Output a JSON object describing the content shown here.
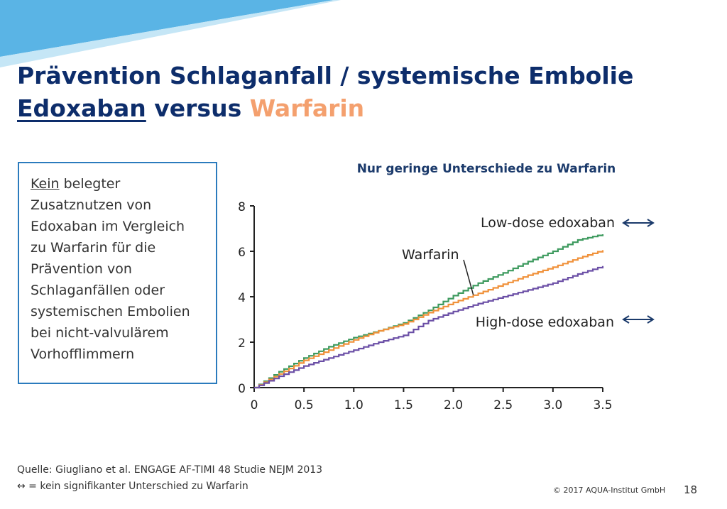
{
  "slide": {
    "title_line1": "Prävention Schlaganfall / systemische Embolie",
    "title_drug1": "Edoxaban",
    "title_versus": " versus ",
    "title_drug2": "Warfarin",
    "accent_color": "#0d2d6b",
    "highlight_color": "#f4a06e"
  },
  "infobox": {
    "keyword": "Kein",
    "line1_rest": " belegter",
    "lines": [
      "Zusatznutzen von",
      "Edoxaban im Vergleich",
      "zu Warfarin für die",
      "Prävention von",
      "Schlaganfällen oder",
      "systemischen Embolien",
      "bei nicht-valvulärem",
      "Vorhofflimmern"
    ]
  },
  "chart_data": {
    "type": "line",
    "title": "Nur geringe Unterschiede zu Warfarin",
    "xlabel": "",
    "ylabel": "",
    "xlim": [
      0,
      3.5
    ],
    "ylim": [
      0,
      8
    ],
    "x_ticks": [
      "0",
      "0.5",
      "1.0",
      "1.5",
      "2.0",
      "2.5",
      "3.0",
      "3.5"
    ],
    "y_ticks": [
      "0",
      "2",
      "4",
      "6",
      "8"
    ],
    "grid": false,
    "series": [
      {
        "name": "Low-dose edoxaban",
        "color": "#3d9a5e",
        "x": [
          0,
          0.25,
          0.5,
          0.75,
          1.0,
          1.25,
          1.5,
          1.75,
          2.0,
          2.25,
          2.5,
          2.75,
          3.0,
          3.25,
          3.5
        ],
        "y": [
          0,
          0.7,
          1.3,
          1.8,
          2.2,
          2.5,
          2.85,
          3.4,
          4.05,
          4.6,
          5.05,
          5.55,
          6.0,
          6.5,
          6.75
        ]
      },
      {
        "name": "Warfarin",
        "color": "#f0913a",
        "x": [
          0,
          0.25,
          0.5,
          0.75,
          1.0,
          1.25,
          1.5,
          1.75,
          2.0,
          2.25,
          2.5,
          2.75,
          3.0,
          3.25,
          3.5
        ],
        "y": [
          0,
          0.6,
          1.2,
          1.65,
          2.1,
          2.5,
          2.8,
          3.3,
          3.75,
          4.15,
          4.55,
          4.95,
          5.3,
          5.7,
          6.05
        ]
      },
      {
        "name": "High-dose edoxaban",
        "color": "#6b4fa6",
        "x": [
          0,
          0.25,
          0.5,
          0.75,
          1.0,
          1.25,
          1.5,
          1.75,
          2.0,
          2.25,
          2.5,
          2.75,
          3.0,
          3.25,
          3.5
        ],
        "y": [
          0,
          0.5,
          0.95,
          1.3,
          1.65,
          2.0,
          2.3,
          2.95,
          3.35,
          3.7,
          4.0,
          4.3,
          4.6,
          5.0,
          5.35
        ]
      }
    ],
    "annotations": {
      "low_arrow": "↔",
      "high_arrow": "↔"
    }
  },
  "footer": {
    "source": "Quelle: Giugliano et al. ENGAGE AF-TIMI 48 Studie NEJM 2013",
    "legend_symbol": "↔",
    "legend_text": " = kein signifikanter Unterschied zu Warfarin",
    "copyright": "© 2017 AQUA-Institut GmbH",
    "page_number": "18"
  }
}
